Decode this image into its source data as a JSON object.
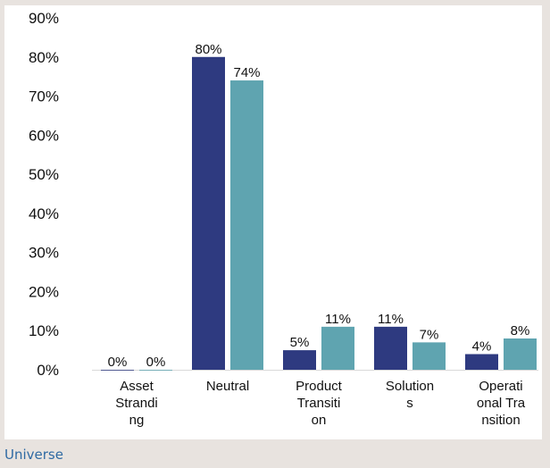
{
  "chart_data": {
    "type": "bar",
    "categories": [
      "Asset Strandi ng",
      "Neutral",
      "Product Transiti on",
      "Solution s",
      "Operati onal Tra nsition"
    ],
    "category_lines": [
      [
        "Asset",
        "Strandi",
        "ng"
      ],
      [
        "Neutral"
      ],
      [
        "Product",
        "Transiti",
        "on"
      ],
      [
        "Solution",
        "s"
      ],
      [
        "Operati",
        "onal Tra",
        "nsition"
      ]
    ],
    "series": [
      {
        "values": [
          0,
          80,
          5,
          11,
          4
        ],
        "color": "#2e3a80",
        "labels": [
          "0%",
          "80%",
          "5%",
          "11%",
          "4%"
        ]
      },
      {
        "values": [
          0,
          74,
          11,
          7,
          8
        ],
        "color": "#5fa4b0",
        "labels": [
          "0%",
          "74%",
          "11%",
          "7%",
          "8%"
        ]
      }
    ],
    "ylim": [
      0,
      90
    ],
    "yticks": [
      0,
      10,
      20,
      30,
      40,
      50,
      60,
      70,
      80,
      90
    ],
    "ytick_labels": [
      "0%",
      "10%",
      "20%",
      "30%",
      "40%",
      "50%",
      "60%",
      "70%",
      "80%",
      "90%"
    ],
    "grid": false,
    "title": "",
    "xlabel": "",
    "ylabel": ""
  },
  "footer": {
    "link_text": "Universe"
  }
}
